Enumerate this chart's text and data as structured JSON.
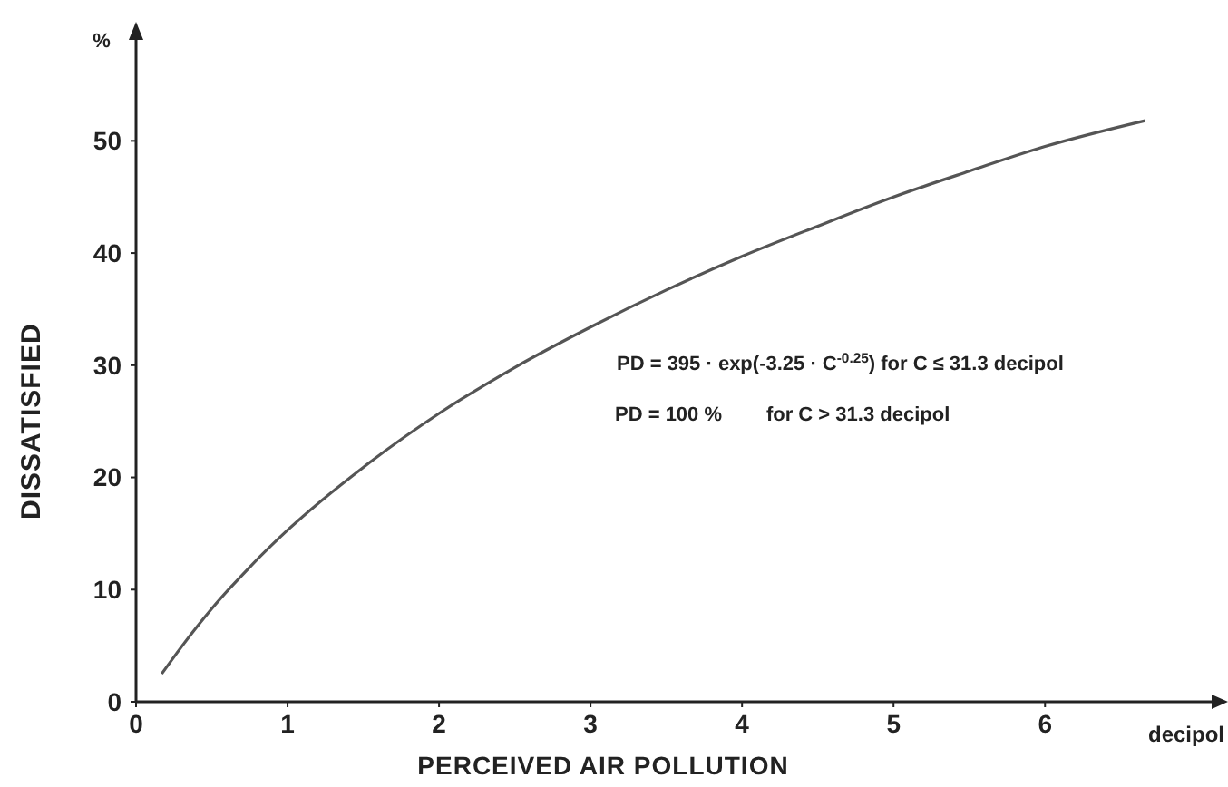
{
  "chart_data": {
    "type": "line",
    "xlabel": "PERCEIVED AIR POLLUTION",
    "ylabel": "DISSATISFIED",
    "xlim": [
      0,
      7.1
    ],
    "xticks": [
      0,
      1,
      2,
      3,
      4,
      5,
      6
    ],
    "ylim": [
      0,
      59
    ],
    "yticks": [
      0,
      10,
      20,
      30,
      40,
      50
    ],
    "annotations": [
      "%",
      "decipol",
      "PD = 395 · exp(-3.25 · C$^{-0.25}$) for C ≤ 31.3 decipol",
      "PD = 100 %        for C > 31.3 decipol"
    ],
    "series": [
      {
        "color": "#555555",
        "x": [
          0.17,
          0.3,
          0.5,
          0.75,
          1,
          1.5,
          2,
          2.5,
          3,
          3.5,
          4,
          4.5,
          5,
          5.5,
          6,
          6.66
        ],
        "values": [
          2.5,
          4.9,
          8.3,
          12.0,
          15.3,
          20.9,
          25.7,
          29.8,
          33.4,
          36.7,
          39.7,
          42.4,
          45.0,
          47.3,
          49.5,
          51.8
        ]
      }
    ]
  }
}
